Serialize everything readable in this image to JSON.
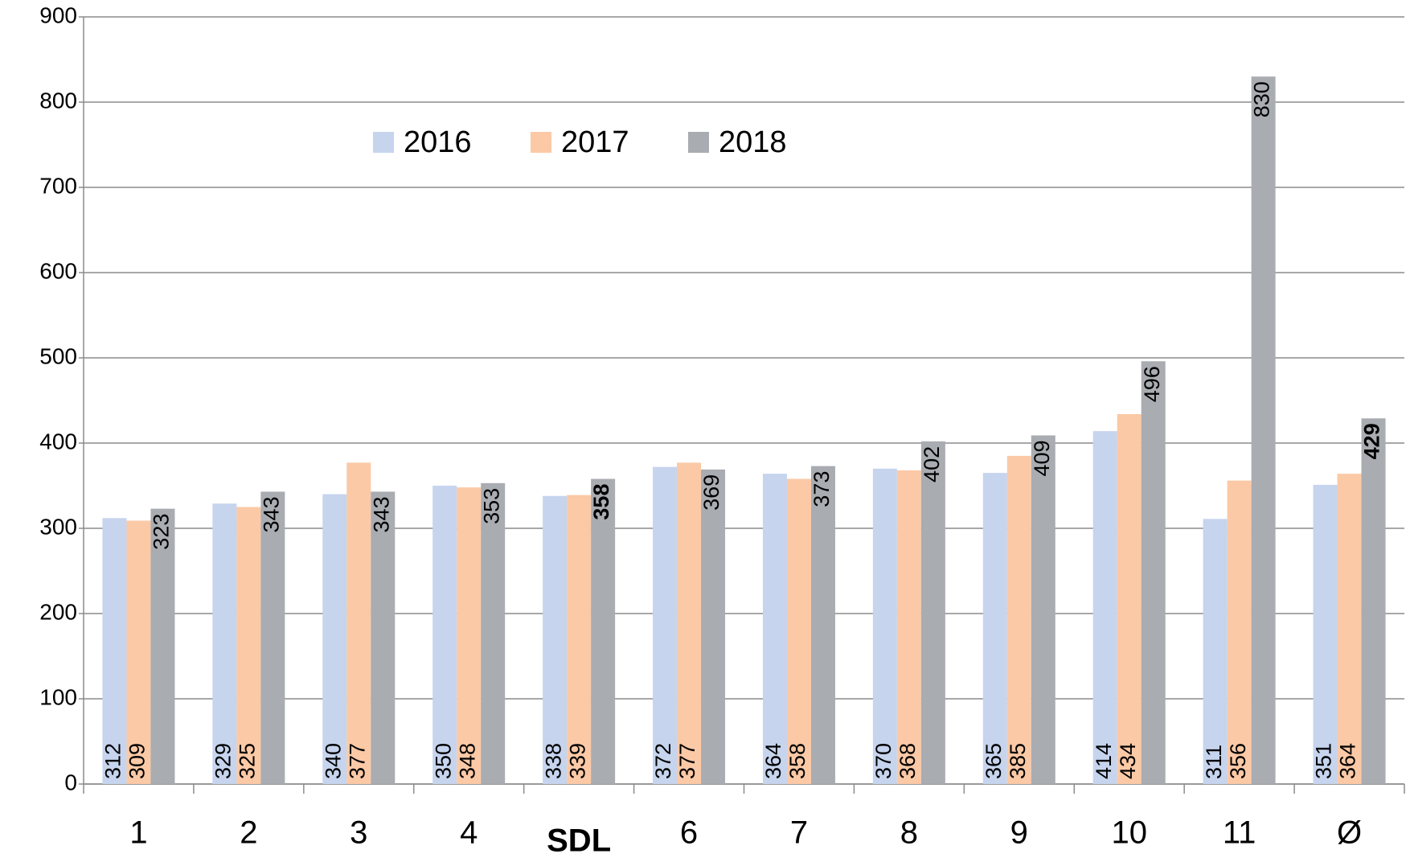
{
  "chart_data": {
    "type": "bar",
    "categories": [
      "1",
      "2",
      "3",
      "4",
      "SDL",
      "6",
      "7",
      "8",
      "9",
      "10",
      "11",
      "Ø"
    ],
    "series": [
      {
        "name": "2016",
        "color": "#c6d4ee",
        "values": [
          312,
          329,
          340,
          350,
          338,
          372,
          364,
          370,
          365,
          414,
          311,
          351
        ],
        "label_position": "bottom",
        "bold_labels": []
      },
      {
        "name": "2017",
        "color": "#fbc9a6",
        "values": [
          309,
          325,
          377,
          348,
          339,
          377,
          358,
          368,
          385,
          434,
          356,
          364
        ],
        "label_position": "bottom",
        "bold_labels": []
      },
      {
        "name": "2018",
        "color": "#a9acb1",
        "values": [
          323,
          343,
          343,
          353,
          358,
          369,
          373,
          402,
          409,
          496,
          830,
          429
        ],
        "label_position": "top",
        "bold_labels": [
          4,
          11
        ]
      }
    ],
    "bold_categories": [
      4
    ],
    "ylim": [
      0,
      900
    ],
    "yticks": [
      0,
      100,
      200,
      300,
      400,
      500,
      600,
      700,
      800,
      900
    ],
    "grid": true,
    "legend": "top-left"
  }
}
